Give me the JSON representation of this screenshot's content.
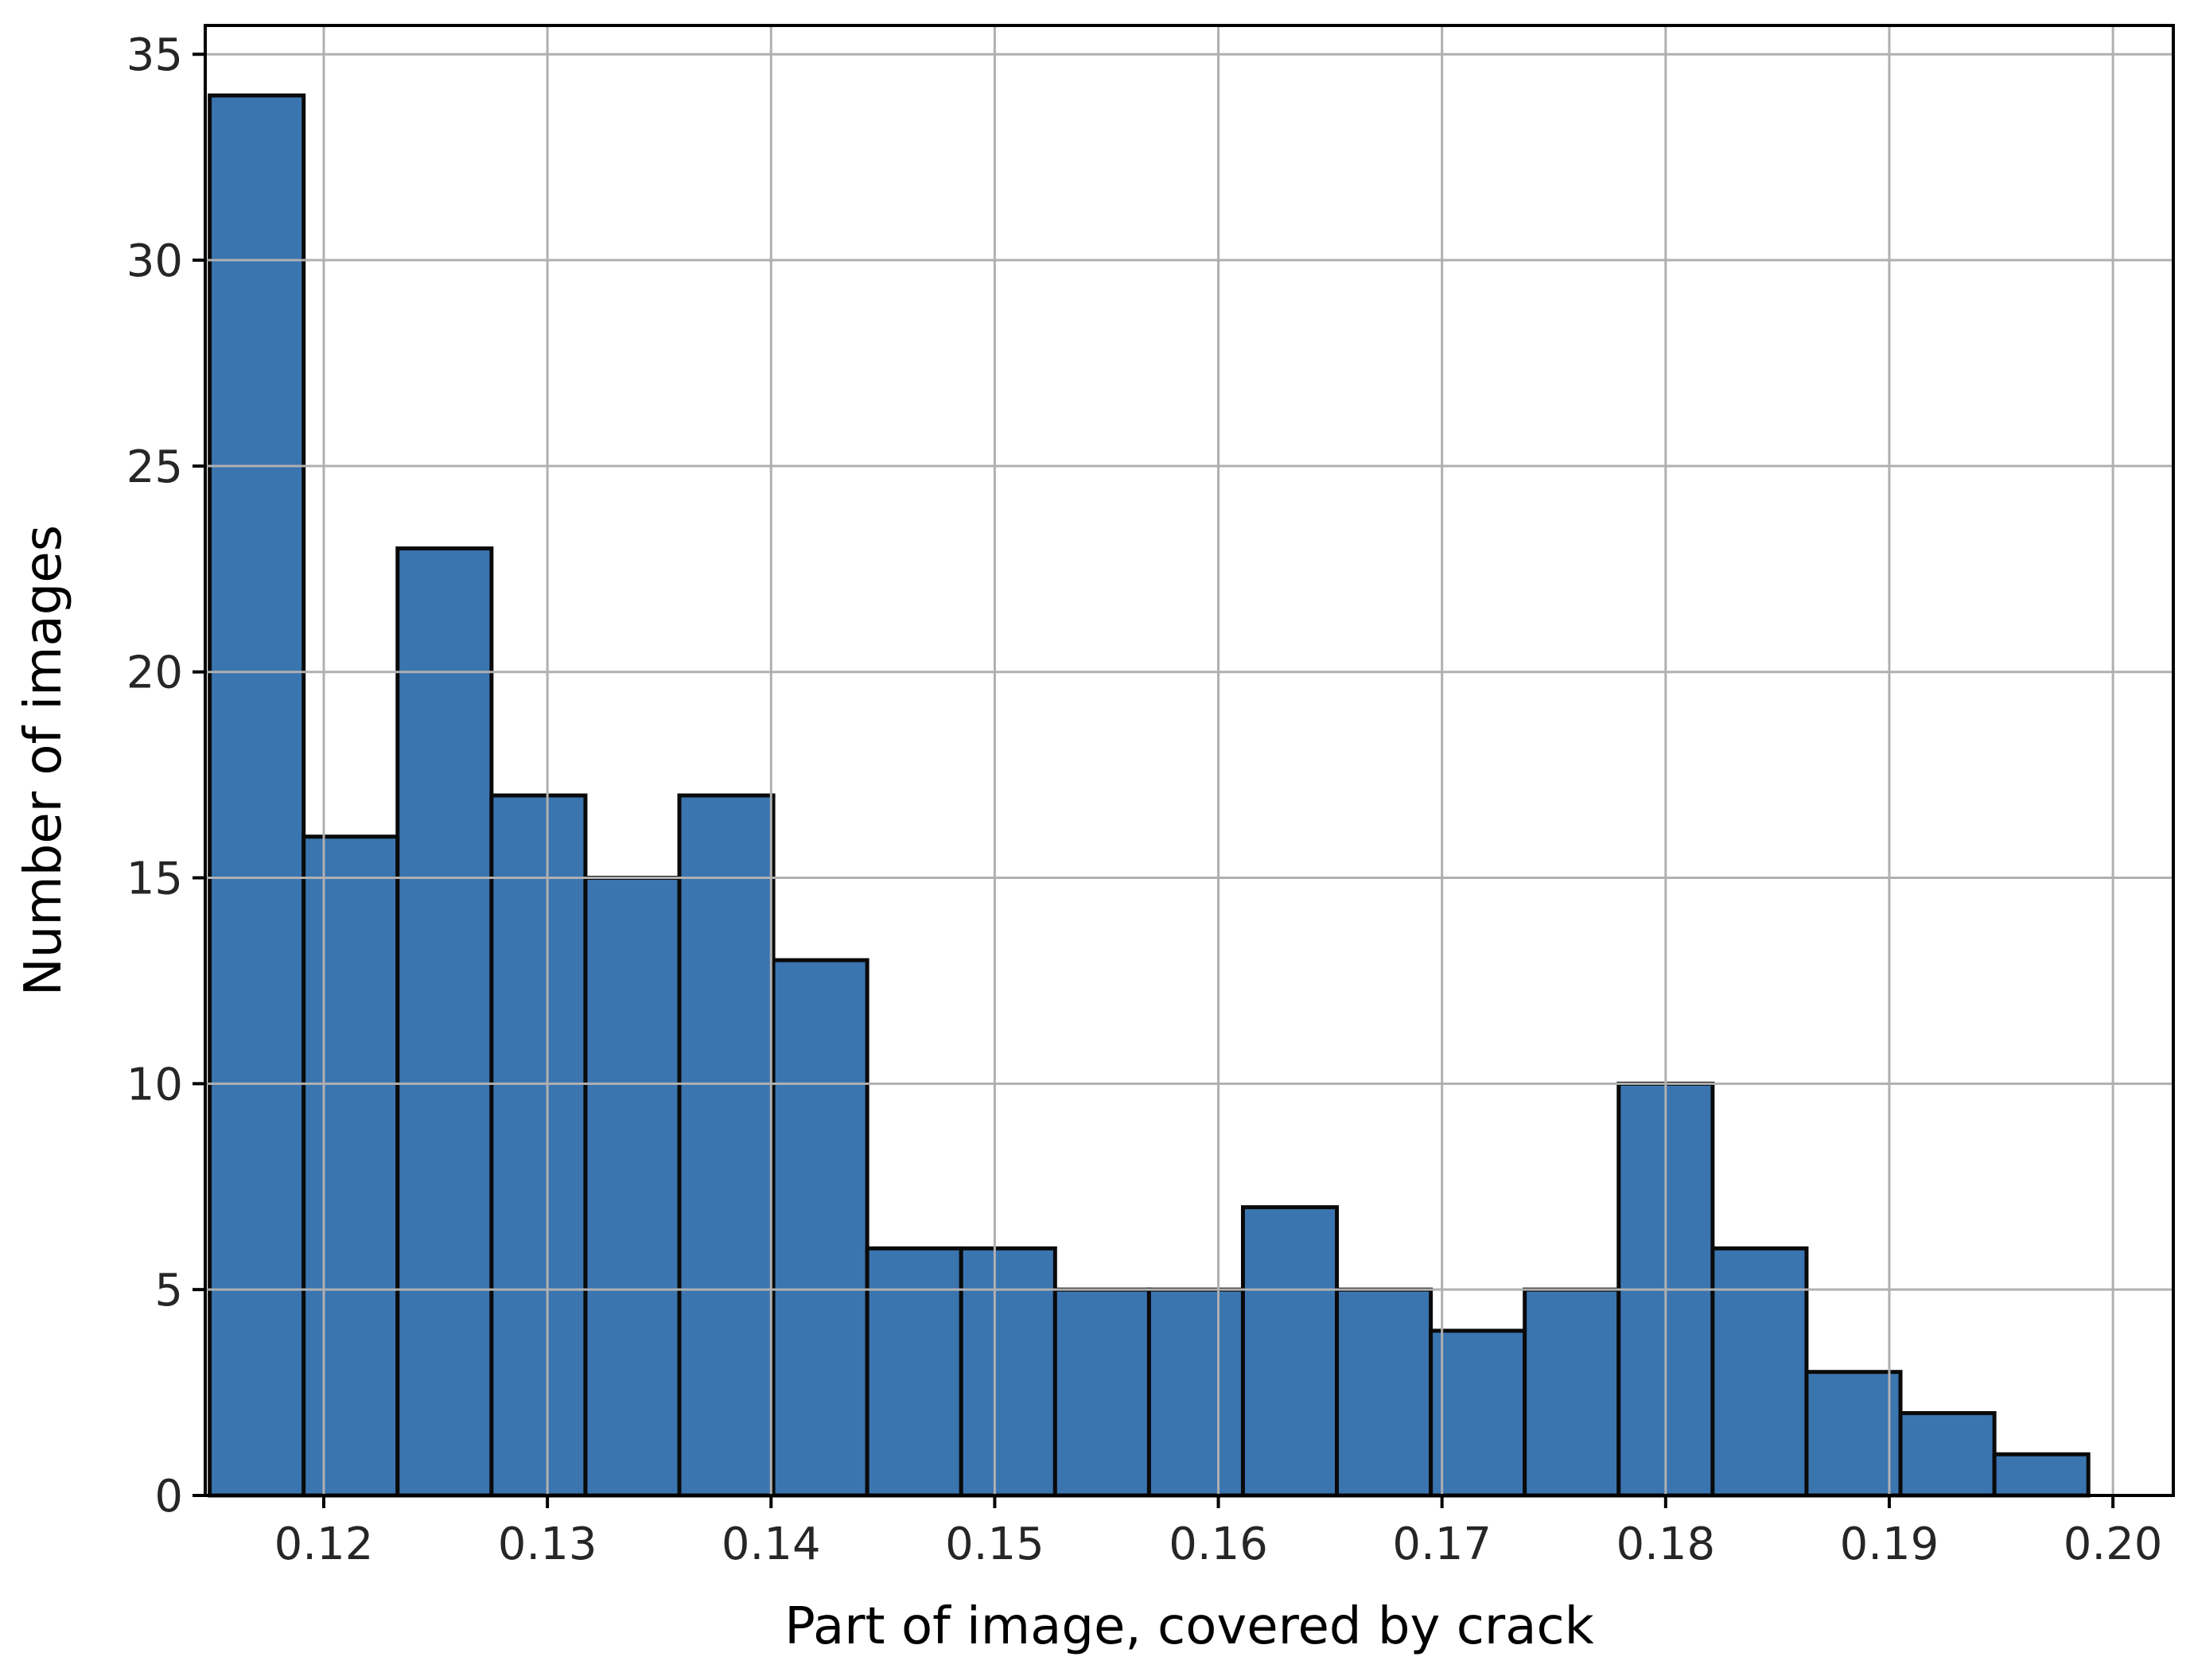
{
  "chart_data": {
    "type": "bar",
    "histogram": true,
    "bin_edges": [
      0.1149,
      0.1191,
      0.1233,
      0.1275,
      0.1317,
      0.1359,
      0.1401,
      0.1443,
      0.1485,
      0.1527,
      0.1569,
      0.1611,
      0.1653,
      0.1695,
      0.1737,
      0.1779,
      0.1821,
      0.1863,
      0.1905,
      0.1947,
      0.1989
    ],
    "values": [
      34,
      16,
      23,
      17,
      15,
      17,
      13,
      6,
      6,
      5,
      5,
      7,
      5,
      4,
      5,
      10,
      6,
      3,
      2,
      1
    ],
    "xlabel": "Part of image, covered by crack",
    "ylabel": "Number of images",
    "xlim": [
      0.1147,
      0.2027
    ],
    "ylim": [
      0,
      35.7
    ],
    "x_ticks": [
      0.12,
      0.13,
      0.14,
      0.15,
      0.16,
      0.17,
      0.18,
      0.19,
      0.2
    ],
    "x_tick_labels": [
      "0.12",
      "0.13",
      "0.14",
      "0.15",
      "0.16",
      "0.17",
      "0.18",
      "0.19",
      "0.20"
    ],
    "y_ticks": [
      0,
      5,
      10,
      15,
      20,
      25,
      30,
      35
    ],
    "y_tick_labels": [
      "0",
      "5",
      "10",
      "15",
      "20",
      "25",
      "30",
      "35"
    ],
    "grid": true,
    "bar_color": "#3b75b0",
    "edge_color": "#0a0a0a"
  }
}
